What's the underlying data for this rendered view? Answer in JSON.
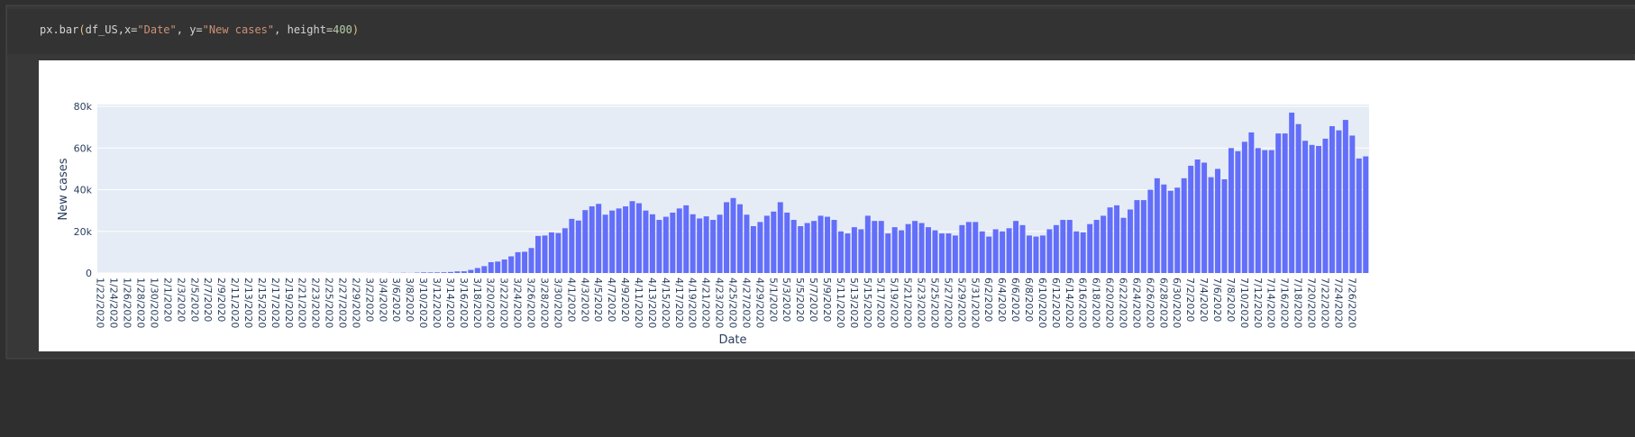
{
  "code": [
    "px.bar",
    "(",
    "df_US,x=",
    "\"Date\"",
    ", y=",
    "\"New cases\"",
    ", height=",
    "400",
    ")"
  ],
  "chart_data": {
    "type": "bar",
    "x_label": "Date",
    "y_label": "New cases",
    "color": "#636efa",
    "grid": true,
    "ylim": [
      0,
      80900
    ],
    "yticks": [
      0,
      {
        "value": 20000,
        "label": "20k"
      },
      {
        "value": 40000,
        "label": "40k"
      },
      {
        "value": 60000,
        "label": "60k"
      },
      {
        "value": 80000,
        "label": "80k"
      }
    ],
    "categories": [
      "1/22/2020",
      null,
      "1/24/2020",
      null,
      "1/26/2020",
      null,
      "1/28/2020",
      null,
      "1/30/2020",
      null,
      "2/1/2020",
      null,
      "2/3/2020",
      null,
      "2/5/2020",
      null,
      "2/7/2020",
      null,
      "2/9/2020",
      null,
      "2/11/2020",
      null,
      "2/13/2020",
      null,
      "2/15/2020",
      null,
      "2/17/2020",
      null,
      "2/19/2020",
      null,
      "2/21/2020",
      null,
      "2/23/2020",
      null,
      "2/25/2020",
      null,
      "2/27/2020",
      null,
      "2/29/2020",
      null,
      "3/2/2020",
      null,
      "3/4/2020",
      null,
      "3/6/2020",
      null,
      "3/8/2020",
      null,
      "3/10/2020",
      null,
      "3/12/2020",
      null,
      "3/14/2020",
      null,
      "3/16/2020",
      null,
      "3/18/2020",
      null,
      "3/20/2020",
      null,
      "3/22/2020",
      null,
      "3/24/2020",
      null,
      "3/26/2020",
      null,
      "3/28/2020",
      null,
      "3/30/2020",
      null,
      "4/1/2020",
      null,
      "4/3/2020",
      null,
      "4/5/2020",
      null,
      "4/7/2020",
      null,
      "4/9/2020",
      null,
      "4/11/2020",
      null,
      "4/13/2020",
      null,
      "4/15/2020",
      null,
      "4/17/2020",
      null,
      "4/19/2020",
      null,
      "4/21/2020",
      null,
      "4/23/2020",
      null,
      "4/25/2020",
      null,
      "4/27/2020",
      null,
      "4/29/2020",
      null,
      "5/1/2020",
      null,
      "5/3/2020",
      null,
      "5/5/2020",
      null,
      "5/7/2020",
      null,
      "5/9/2020",
      null,
      "5/11/2020",
      null,
      "5/13/2020",
      null,
      "5/15/2020",
      null,
      "5/17/2020",
      null,
      "5/19/2020",
      null,
      "5/21/2020",
      null,
      "5/23/2020",
      null,
      "5/25/2020",
      null,
      "5/27/2020",
      null,
      "5/29/2020",
      null,
      "5/31/2020",
      null,
      "6/2/2020",
      null,
      "6/4/2020",
      null,
      "6/6/2020",
      null,
      "6/8/2020",
      null,
      "6/10/2020",
      null,
      "6/12/2020",
      null,
      "6/14/2020",
      null,
      "6/16/2020",
      null,
      "6/18/2020",
      null,
      "6/20/2020",
      null,
      "6/22/2020",
      null,
      "6/24/2020",
      null,
      "6/26/2020",
      null,
      "6/28/2020",
      null,
      "6/30/2020",
      null,
      "7/2/2020",
      null,
      "7/4/2020",
      null,
      "7/6/2020",
      null,
      "7/8/2020",
      null,
      "7/10/2020",
      null,
      "7/12/2020",
      null,
      "7/14/2020",
      null,
      "7/16/2020",
      null,
      "7/18/2020",
      null,
      "7/20/2020",
      null,
      "7/22/2020",
      null,
      "7/24/2020",
      null,
      "7/26/2020",
      null,
      null
    ],
    "values": [
      1,
      0,
      1,
      0,
      3,
      0,
      0,
      1,
      0,
      2,
      1,
      0,
      0,
      0,
      3,
      0,
      0,
      0,
      0,
      1,
      0,
      1,
      0,
      0,
      0,
      0,
      0,
      0,
      0,
      0,
      0,
      0,
      0,
      0,
      18,
      0,
      0,
      0,
      9,
      6,
      22,
      23,
      20,
      68,
      54,
      117,
      58,
      173,
      290,
      271,
      287,
      351,
      511,
      777,
      823,
      1500,
      2400,
      3300,
      5200,
      5500,
      6500,
      8000,
      10000,
      10200,
      12000,
      17800,
      18000,
      19500,
      19200,
      21500,
      26000,
      25200,
      30200,
      32000,
      33200,
      28000,
      30000,
      31000,
      32000,
      34500,
      33500,
      30000,
      28200,
      25500,
      27000,
      29000,
      31000,
      32500,
      28200,
      26200,
      27200,
      25500,
      28000,
      34000,
      36000,
      33000,
      28000,
      22500,
      24500,
      27500,
      29500,
      34000,
      29000,
      25500,
      22500,
      24000,
      25000,
      27500,
      27000,
      25500,
      20000,
      19000,
      22000,
      21000,
      27500,
      25000,
      25000,
      19000,
      22000,
      20500,
      23500,
      25000,
      24000,
      22000,
      20500,
      19000,
      19000,
      18000,
      23000,
      24500,
      24500,
      20000,
      17500,
      21000,
      20000,
      21500,
      25000,
      23000,
      18000,
      17500,
      18000,
      21000,
      23000,
      25500,
      25500,
      20000,
      19500,
      23500,
      25500,
      27500,
      31500,
      32500,
      26500,
      30500,
      35000,
      35000,
      40000,
      45500,
      42500,
      39500,
      41000,
      45500,
      51500,
      54500,
      53000,
      46000,
      50000,
      45000,
      60000,
      58500,
      63000,
      67500,
      60000,
      59000,
      59000,
      67000,
      67000,
      77000,
      71500,
      63500,
      61500,
      61000,
      64500,
      70500,
      68500,
      73500,
      66000,
      55000,
      56000
    ]
  }
}
